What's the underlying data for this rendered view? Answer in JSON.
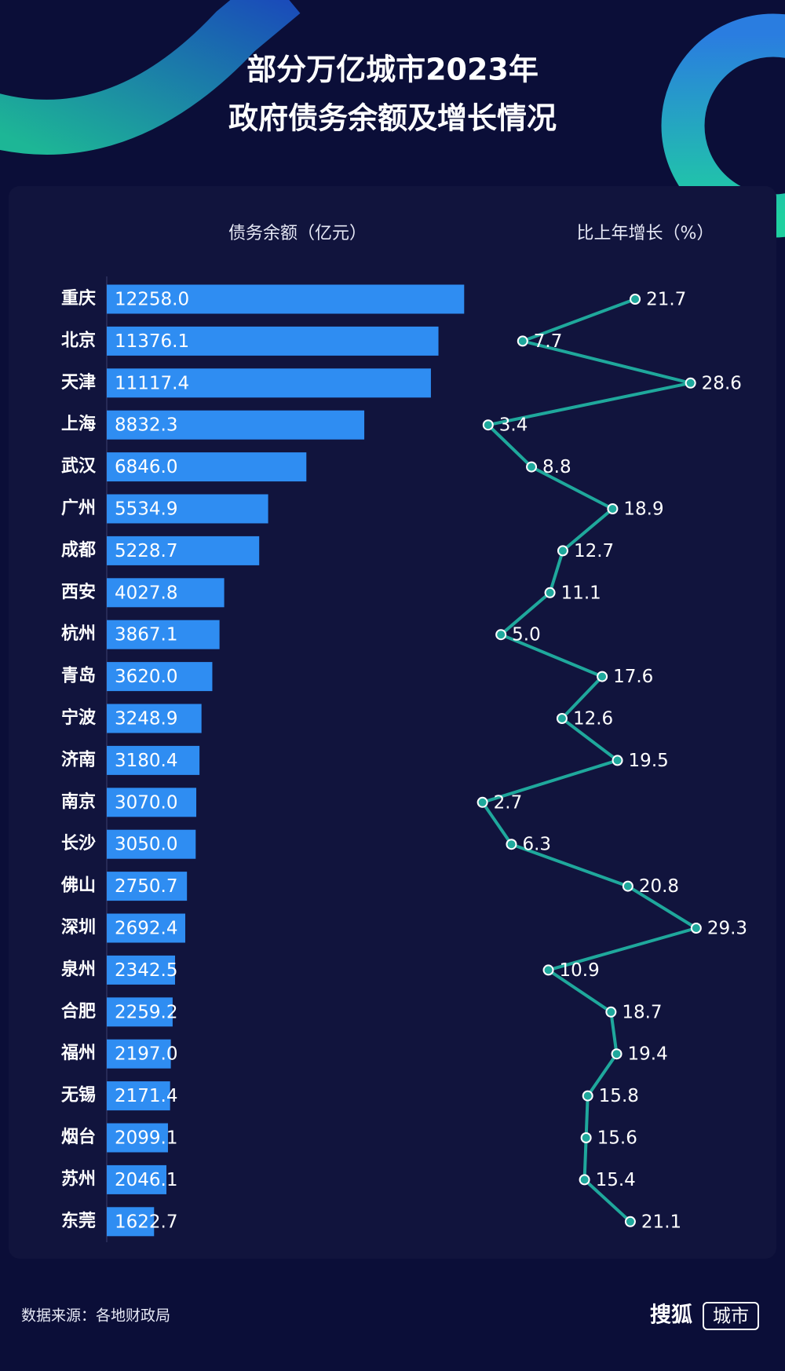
{
  "header": {
    "title_lines": [
      "部分万亿城市2023年",
      "政府债务余额及增长情况"
    ]
  },
  "chart_data": [
    {
      "type": "bar",
      "orientation": "horizontal",
      "x_label": "债务余额（亿元）",
      "color": "#2f8df2",
      "categories": [
        "重庆",
        "北京",
        "天津",
        "上海",
        "武汉",
        "广州",
        "成都",
        "西安",
        "杭州",
        "青岛",
        "宁波",
        "济南",
        "南京",
        "长沙",
        "佛山",
        "深圳",
        "泉州",
        "合肥",
        "福州",
        "无锡",
        "烟台",
        "苏州",
        "东莞"
      ],
      "values": [
        12258.0,
        11376.1,
        11117.4,
        8832.3,
        6846.0,
        5534.9,
        5228.7,
        4027.8,
        3867.1,
        3620.0,
        3248.9,
        3180.4,
        3070.0,
        3050.0,
        2750.7,
        2692.4,
        2342.5,
        2259.2,
        2197.0,
        2171.4,
        2099.1,
        2046.1,
        1622.7
      ],
      "value_labels": [
        "12258.0",
        "11376.1",
        "11117.4",
        "8832.3",
        "6846.0",
        "5534.9",
        "5228.7",
        "4027.8",
        "3867.1",
        "3620.0",
        "3248.9",
        "3180.4",
        "3070.0",
        "3050.0",
        "2750.7",
        "2692.4",
        "2342.5",
        "2259.2",
        "2197.0",
        "2171.4",
        "2099.1",
        "2046.1",
        "1622.7"
      ],
      "xlim": [
        0,
        14000
      ]
    },
    {
      "type": "line",
      "orientation": "vertical",
      "x_label": "比上年增长（%）",
      "color": "#1fa89c",
      "values": [
        21.7,
        7.7,
        28.6,
        3.4,
        8.8,
        18.9,
        12.7,
        11.1,
        5.0,
        17.6,
        12.6,
        19.5,
        2.7,
        6.3,
        20.8,
        29.3,
        10.9,
        18.7,
        19.4,
        15.8,
        15.6,
        15.4,
        21.1
      ],
      "value_labels": [
        "21.7",
        "7.7",
        "28.6",
        "3.4",
        "8.8",
        "18.9",
        "12.7",
        "11.1",
        "5.0",
        "17.6",
        "12.6",
        "19.5",
        "2.7",
        "6.3",
        "20.8",
        "29.3",
        "10.9",
        "18.7",
        "19.4",
        "15.8",
        "15.6",
        "15.4",
        "21.1"
      ],
      "xlim": [
        0,
        30
      ]
    }
  ],
  "footer": {
    "source": "数据来源：各地财政局",
    "brand": "搜狐",
    "brand_tag": "城市"
  }
}
